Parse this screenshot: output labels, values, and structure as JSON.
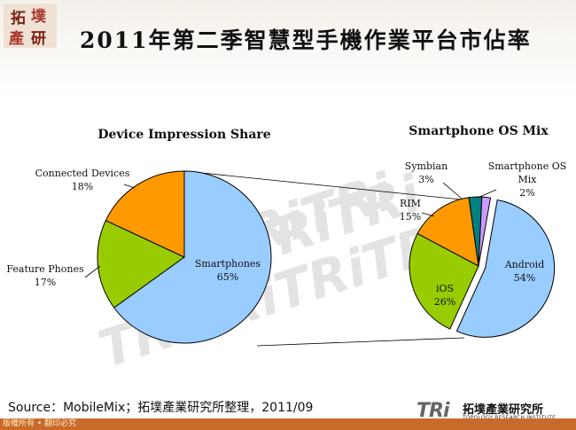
{
  "header": {
    "title": "2011年第二季智慧型手機作業平台市佔率",
    "logo_text": [
      "拓",
      "墣",
      "產",
      "研"
    ]
  },
  "chart_data": [
    {
      "type": "pie",
      "title": "Device Impression Share",
      "slices": [
        {
          "label": "Smartphones",
          "value": 65,
          "display": "65%",
          "color": "#99ccff"
        },
        {
          "label": "Feature Phones",
          "value": 17,
          "display": "17%",
          "color": "#99cc00"
        },
        {
          "label": "Connected Devices",
          "value": 18,
          "display": "18%",
          "color": "#ff9900"
        }
      ]
    },
    {
      "type": "pie",
      "title": "Smartphone OS Mix",
      "slices": [
        {
          "label": "Android",
          "value": 54,
          "display": "54%",
          "color": "#99ccff"
        },
        {
          "label": "iOS",
          "value": 26,
          "display": "26%",
          "color": "#99cc00"
        },
        {
          "label": "RIM",
          "value": 15,
          "display": "15%",
          "color": "#ff9900"
        },
        {
          "label": "Symbian",
          "value": 3,
          "display": "3%",
          "color": "#008080"
        },
        {
          "label": "Smartphone OS Mix",
          "value": 2,
          "display": "2%",
          "color": "#cc99ff"
        }
      ]
    }
  ],
  "footer": {
    "source": "Source：MobileMix；拓墣產業研究所整理，2011/09",
    "copyright": "版權所有 • 翻印必究",
    "logo_mark": "TRi",
    "logo_name": "拓墣產業研究所",
    "logo_sub": "TOPOLOGY RESEARCH INSTITUTE"
  },
  "colors": {
    "copyright_bar": "#c96a2a",
    "watermark": "#d9d9d9"
  }
}
